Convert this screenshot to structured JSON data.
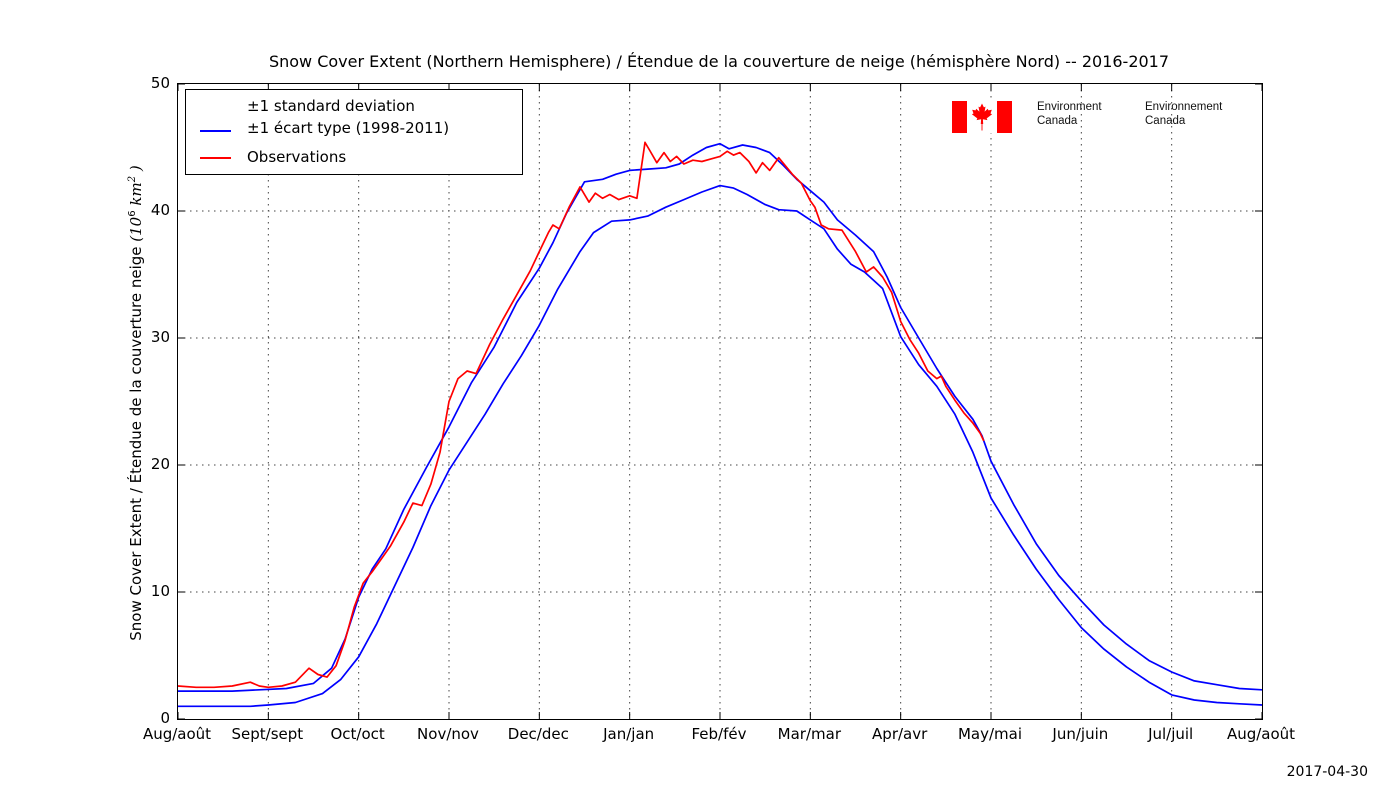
{
  "title": "Snow Cover Extent (Northern Hemisphere) / Étendue de la couverture de neige (hémisphère Nord) -- 2016-2017",
  "date_label": "2017-04-30",
  "colors": {
    "line_blue": "#0000ff",
    "line_red": "#ff0000",
    "flag_red": "#ff0000",
    "grid": "#444444",
    "frame": "#000000"
  },
  "logo": {
    "english_line1": "Environment",
    "english_line2": "Canada",
    "french_line1": "Environnement",
    "french_line2": "Canada"
  },
  "legend": {
    "entries": [
      {
        "label_line1": "±1 standard deviation",
        "label_line2": "±1 écart type (1998-2011)",
        "color": "#0000ff"
      },
      {
        "label_line1": "Observations",
        "color": "#ff0000"
      }
    ]
  },
  "axes": {
    "ylabel_text": "Snow Cover Extent / Étendue de la couverture neige",
    "ylabel_unit_open": "(10",
    "ylabel_unit_exp1": "6",
    "ylabel_unit_var": " km",
    "ylabel_unit_exp2": "2",
    "ylabel_unit_close": " )",
    "ytick_labels": [
      "0",
      "10",
      "20",
      "30",
      "40",
      "50"
    ],
    "xtick_labels": [
      "Aug/août",
      "Sept/sept",
      "Oct/oct",
      "Nov/nov",
      "Dec/dec",
      "Jan/jan",
      "Feb/fév",
      "Mar/mar",
      "Apr/avr",
      "May/mai",
      "Jun/juin",
      "Jul/juil",
      "Aug/août"
    ]
  },
  "chart_data": {
    "type": "line",
    "title": "Snow Cover Extent (Northern Hemisphere) / Étendue de la couverture de neige (hémisphère Nord) -- 2016-2017",
    "xlabel": "",
    "ylabel": "Snow Cover Extent / Étendue de la couverture neige (10^6 km^2)",
    "x_unit": "months since 1 August (weekly data)",
    "xlim": [
      0,
      12
    ],
    "ylim": [
      0,
      50
    ],
    "yticks": [
      0,
      10,
      20,
      30,
      40,
      50
    ],
    "grid": true,
    "grid_style": "dotted",
    "legend_position": "upper-left",
    "x_tick_labels": [
      "Aug/août",
      "Sept/sept",
      "Oct/oct",
      "Nov/nov",
      "Dec/dec",
      "Jan/jan",
      "Feb/fév",
      "Mar/mar",
      "Apr/avr",
      "May/mai",
      "Jun/juin",
      "Jul/juil",
      "Aug/août"
    ],
    "series": [
      {
        "name": "+1 standard deviation (1998-2011)",
        "color": "#0000ff",
        "points": [
          [
            0,
            2.2
          ],
          [
            0.3,
            2.2
          ],
          [
            0.6,
            2.2
          ],
          [
            0.9,
            2.3
          ],
          [
            1.2,
            2.4
          ],
          [
            1.5,
            2.8
          ],
          [
            1.7,
            4.0
          ],
          [
            1.85,
            6.3
          ],
          [
            2,
            9.6
          ],
          [
            2.15,
            11.8
          ],
          [
            2.3,
            13.4
          ],
          [
            2.5,
            16.5
          ],
          [
            2.75,
            19.8
          ],
          [
            3,
            23.0
          ],
          [
            3.25,
            26.5
          ],
          [
            3.5,
            29.3
          ],
          [
            3.75,
            32.8
          ],
          [
            4,
            35.5
          ],
          [
            4.15,
            37.5
          ],
          [
            4.3,
            39.8
          ],
          [
            4.5,
            42.3
          ],
          [
            4.7,
            42.5
          ],
          [
            4.85,
            42.9
          ],
          [
            5,
            43.2
          ],
          [
            5.2,
            43.3
          ],
          [
            5.4,
            43.4
          ],
          [
            5.55,
            43.7
          ],
          [
            5.7,
            44.4
          ],
          [
            5.85,
            45.0
          ],
          [
            6,
            45.3
          ],
          [
            6.1,
            44.9
          ],
          [
            6.25,
            45.2
          ],
          [
            6.4,
            45.0
          ],
          [
            6.55,
            44.6
          ],
          [
            6.7,
            43.6
          ],
          [
            6.85,
            42.5
          ],
          [
            7,
            41.6
          ],
          [
            7.15,
            40.7
          ],
          [
            7.3,
            39.3
          ],
          [
            7.5,
            38.1
          ],
          [
            7.7,
            36.8
          ],
          [
            7.85,
            34.8
          ],
          [
            8,
            32.4
          ],
          [
            8.2,
            30.0
          ],
          [
            8.4,
            27.6
          ],
          [
            8.6,
            25.4
          ],
          [
            8.8,
            23.6
          ],
          [
            8.9,
            22.3
          ],
          [
            9,
            20.3
          ],
          [
            9.25,
            16.9
          ],
          [
            9.5,
            13.8
          ],
          [
            9.75,
            11.3
          ],
          [
            10,
            9.3
          ],
          [
            10.25,
            7.4
          ],
          [
            10.5,
            5.9
          ],
          [
            10.75,
            4.6
          ],
          [
            11,
            3.7
          ],
          [
            11.25,
            3.0
          ],
          [
            11.5,
            2.7
          ],
          [
            11.75,
            2.4
          ],
          [
            12,
            2.3
          ]
        ]
      },
      {
        "name": "-1 standard deviation (1998-2011)",
        "color": "#0000ff",
        "points": [
          [
            0,
            1.0
          ],
          [
            0.4,
            1.0
          ],
          [
            0.8,
            1.0
          ],
          [
            1,
            1.1
          ],
          [
            1.3,
            1.3
          ],
          [
            1.6,
            2.0
          ],
          [
            1.8,
            3.1
          ],
          [
            2,
            4.9
          ],
          [
            2.2,
            7.5
          ],
          [
            2.4,
            10.5
          ],
          [
            2.6,
            13.5
          ],
          [
            2.8,
            16.8
          ],
          [
            3,
            19.6
          ],
          [
            3.2,
            21.8
          ],
          [
            3.4,
            24.0
          ],
          [
            3.6,
            26.4
          ],
          [
            3.8,
            28.6
          ],
          [
            4,
            31.0
          ],
          [
            4.2,
            33.8
          ],
          [
            4.45,
            36.8
          ],
          [
            4.6,
            38.3
          ],
          [
            4.8,
            39.2
          ],
          [
            5,
            39.3
          ],
          [
            5.2,
            39.6
          ],
          [
            5.4,
            40.3
          ],
          [
            5.6,
            40.9
          ],
          [
            5.8,
            41.5
          ],
          [
            6,
            42.0
          ],
          [
            6.15,
            41.8
          ],
          [
            6.3,
            41.3
          ],
          [
            6.5,
            40.5
          ],
          [
            6.65,
            40.1
          ],
          [
            6.85,
            40.0
          ],
          [
            7,
            39.3
          ],
          [
            7.15,
            38.6
          ],
          [
            7.3,
            37.0
          ],
          [
            7.45,
            35.8
          ],
          [
            7.6,
            35.2
          ],
          [
            7.8,
            33.9
          ],
          [
            8,
            30.1
          ],
          [
            8.2,
            27.9
          ],
          [
            8.4,
            26.2
          ],
          [
            8.6,
            24.0
          ],
          [
            8.8,
            21.0
          ],
          [
            9,
            17.4
          ],
          [
            9.25,
            14.5
          ],
          [
            9.5,
            11.8
          ],
          [
            9.75,
            9.4
          ],
          [
            10,
            7.2
          ],
          [
            10.25,
            5.5
          ],
          [
            10.5,
            4.1
          ],
          [
            10.75,
            2.9
          ],
          [
            11,
            1.9
          ],
          [
            11.25,
            1.5
          ],
          [
            11.5,
            1.3
          ],
          [
            11.75,
            1.2
          ],
          [
            12,
            1.1
          ]
        ]
      },
      {
        "name": "Observations",
        "color": "#ff0000",
        "points": [
          [
            0,
            2.6
          ],
          [
            0.2,
            2.5
          ],
          [
            0.4,
            2.5
          ],
          [
            0.6,
            2.6
          ],
          [
            0.8,
            2.9
          ],
          [
            0.9,
            2.6
          ],
          [
            1,
            2.5
          ],
          [
            1.15,
            2.6
          ],
          [
            1.3,
            2.9
          ],
          [
            1.45,
            4.0
          ],
          [
            1.55,
            3.5
          ],
          [
            1.65,
            3.3
          ],
          [
            1.75,
            4.2
          ],
          [
            1.85,
            6.2
          ],
          [
            1.95,
            8.8
          ],
          [
            2.05,
            10.7
          ],
          [
            2.15,
            11.6
          ],
          [
            2.25,
            12.6
          ],
          [
            2.35,
            13.6
          ],
          [
            2.5,
            15.5
          ],
          [
            2.6,
            17.0
          ],
          [
            2.7,
            16.8
          ],
          [
            2.8,
            18.5
          ],
          [
            2.9,
            21.0
          ],
          [
            3,
            25.0
          ],
          [
            3.1,
            26.8
          ],
          [
            3.2,
            27.4
          ],
          [
            3.3,
            27.2
          ],
          [
            3.45,
            29.5
          ],
          [
            3.6,
            31.5
          ],
          [
            3.75,
            33.4
          ],
          [
            3.9,
            35.3
          ],
          [
            4,
            36.8
          ],
          [
            4.1,
            38.3
          ],
          [
            4.15,
            38.9
          ],
          [
            4.22,
            38.6
          ],
          [
            4.33,
            40.3
          ],
          [
            4.45,
            41.9
          ],
          [
            4.55,
            40.7
          ],
          [
            4.62,
            41.4
          ],
          [
            4.7,
            41.0
          ],
          [
            4.78,
            41.3
          ],
          [
            4.88,
            40.9
          ],
          [
            5,
            41.2
          ],
          [
            5.08,
            41.0
          ],
          [
            5.17,
            45.4
          ],
          [
            5.22,
            44.8
          ],
          [
            5.3,
            43.8
          ],
          [
            5.38,
            44.6
          ],
          [
            5.45,
            43.9
          ],
          [
            5.52,
            44.3
          ],
          [
            5.6,
            43.7
          ],
          [
            5.7,
            44.0
          ],
          [
            5.8,
            43.9
          ],
          [
            5.9,
            44.1
          ],
          [
            6,
            44.3
          ],
          [
            6.08,
            44.7
          ],
          [
            6.15,
            44.4
          ],
          [
            6.22,
            44.6
          ],
          [
            6.32,
            43.9
          ],
          [
            6.4,
            43.0
          ],
          [
            6.47,
            43.8
          ],
          [
            6.55,
            43.2
          ],
          [
            6.65,
            44.2
          ],
          [
            6.72,
            43.6
          ],
          [
            6.8,
            42.9
          ],
          [
            6.9,
            42.2
          ],
          [
            7,
            40.8
          ],
          [
            7.05,
            40.3
          ],
          [
            7.12,
            38.9
          ],
          [
            7.2,
            38.6
          ],
          [
            7.35,
            38.5
          ],
          [
            7.5,
            36.8
          ],
          [
            7.62,
            35.2
          ],
          [
            7.7,
            35.6
          ],
          [
            7.8,
            34.8
          ],
          [
            7.9,
            33.6
          ],
          [
            8,
            31.3
          ],
          [
            8.1,
            29.9
          ],
          [
            8.2,
            28.8
          ],
          [
            8.3,
            27.4
          ],
          [
            8.4,
            26.8
          ],
          [
            8.45,
            27.0
          ],
          [
            8.5,
            26.2
          ],
          [
            8.6,
            25.1
          ],
          [
            8.7,
            24.1
          ],
          [
            8.8,
            23.3
          ],
          [
            8.88,
            22.5
          ],
          [
            8.92,
            21.9
          ]
        ]
      }
    ]
  }
}
